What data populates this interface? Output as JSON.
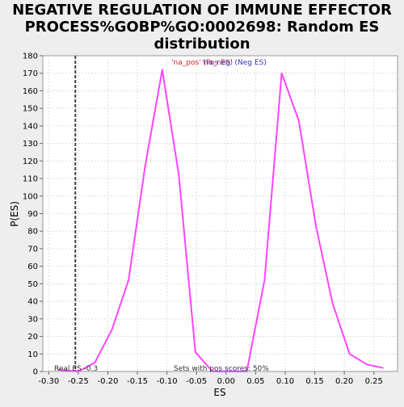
{
  "chart_data": {
    "type": "line",
    "title_lines": [
      "NEGATIVE REGULATION OF IMMUNE EFFECTOR",
      "PROCESS%GOBP%GO:0002698: Random ES",
      "distribution"
    ],
    "xlabel": "ES",
    "ylabel": "P(ES)",
    "xlim": [
      -0.31,
      0.29
    ],
    "ylim": [
      0,
      180
    ],
    "xticks": [
      -0.3,
      -0.25,
      -0.2,
      -0.15,
      -0.1,
      -0.05,
      0.0,
      0.05,
      0.1,
      0.15,
      0.2,
      0.25
    ],
    "xtick_labels": [
      "-0.30",
      "-0.25",
      "-0.20",
      "-0.15",
      "-0.10",
      "-0.05",
      "0.00",
      "0.05",
      "0.10",
      "0.15",
      "0.20",
      "0.25"
    ],
    "yticks": [
      0,
      10,
      20,
      30,
      40,
      50,
      60,
      70,
      80,
      90,
      100,
      110,
      120,
      130,
      140,
      150,
      160,
      170,
      180
    ],
    "grid": true,
    "series": [
      {
        "color": "#ff44ff",
        "x": [
          -0.285,
          -0.25,
          -0.222,
          -0.193,
          -0.165,
          -0.137,
          -0.108,
          -0.08,
          -0.052,
          -0.023,
          0.005,
          0.035,
          0.065,
          0.094,
          0.123,
          0.152,
          0.18,
          0.209,
          0.238,
          0.266
        ],
        "y": [
          1,
          0,
          5,
          24,
          52,
          117,
          172,
          112,
          11,
          0,
          0,
          0,
          52,
          170,
          143,
          83,
          39,
          10,
          4,
          2
        ]
      }
    ],
    "real_es": {
      "value": -0.3,
      "x": -0.255,
      "label": "Real ES -0.3",
      "color": "#444444"
    },
    "annotations": {
      "na_pos": {
        "text": "'na_pos' (Pos ES)",
        "color": "#dd2222"
      },
      "na_neg": {
        "text": "'na_neg' (Neg ES)",
        "color": "#3333bb"
      },
      "sets_with_pos": {
        "text": "Sets with pos scores: 50%",
        "color": "#333333"
      }
    }
  }
}
